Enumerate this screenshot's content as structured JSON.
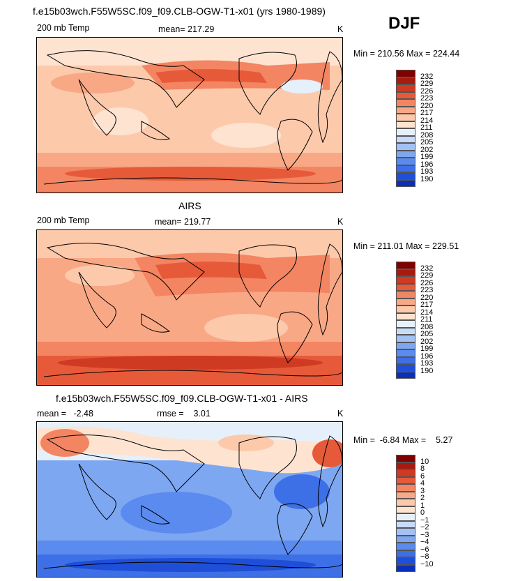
{
  "season": "DJF",
  "colormap_temp": [
    "#000080",
    "#0b2fb8",
    "#1f4fd8",
    "#3d6fe6",
    "#5b8bee",
    "#7ea7f2",
    "#a2c1f5",
    "#c8dbf8",
    "#e6f0fb",
    "#fde3d0",
    "#fcc9ab",
    "#f9a886",
    "#f38562",
    "#e65a3a",
    "#cf3a22",
    "#a81a0e",
    "#800000"
  ],
  "colormap_diff": [
    "#000080",
    "#0b2fb8",
    "#1f4fd8",
    "#3d6fe6",
    "#5b8bee",
    "#7ea7f2",
    "#a2c1f5",
    "#c8dbf8",
    "#e6f0fb",
    "#fde3d0",
    "#fcc9ab",
    "#f9a886",
    "#f38562",
    "#e65a3a",
    "#cf3a22",
    "#a81a0e",
    "#800000"
  ],
  "chart_data": [
    {
      "type": "heatmap",
      "title": "f.e15b03wch.F55W5SC.f09_f09.CLB-OGW-T1-x01 (yrs 1980-1989)",
      "variable": "200 mb Temp",
      "mean_label": "mean= 217.29",
      "units": "K",
      "minmax": "Min = 210.56 Max = 224.44",
      "min": 210.56,
      "max": 224.44,
      "colorbar_labels": [
        "232",
        "229",
        "226",
        "223",
        "220",
        "217",
        "214",
        "211",
        "208",
        "205",
        "202",
        "199",
        "196",
        "193",
        "190"
      ]
    },
    {
      "type": "heatmap",
      "title": "AIRS",
      "variable": "200 mb Temp",
      "mean_label": "mean= 219.77",
      "units": "K",
      "minmax": "Min = 211.01 Max = 229.51",
      "min": 211.01,
      "max": 229.51,
      "colorbar_labels": [
        "232",
        "229",
        "226",
        "223",
        "220",
        "217",
        "214",
        "211",
        "208",
        "205",
        "202",
        "199",
        "196",
        "193",
        "190"
      ]
    },
    {
      "type": "heatmap",
      "title": "f.e15b03wch.F55W5SC.f09_f09.CLB-OGW-T1-x01 - AIRS",
      "mean_label": "mean =   -2.48",
      "rmse_label": "rmse =    3.01",
      "units": "K",
      "minmax": "Min =  -6.84 Max =    5.27",
      "min": -6.84,
      "max": 5.27,
      "colorbar_labels": [
        "10",
        "8",
        "6",
        "4",
        "3",
        "2",
        "1",
        "0",
        "−1",
        "−2",
        "−3",
        "−4",
        "−6",
        "−8",
        "−10"
      ]
    }
  ]
}
